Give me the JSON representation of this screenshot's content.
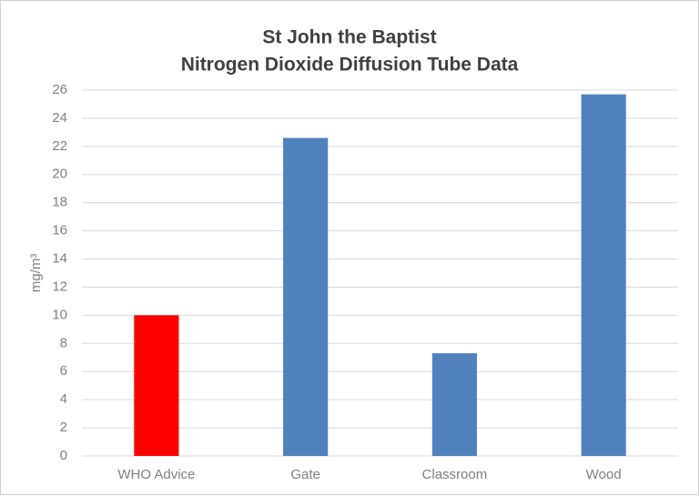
{
  "chart_data": {
    "type": "bar",
    "title": "St John the Baptist",
    "subtitle": "Nitrogen Dioxide Diffusion Tube Data",
    "y_label": "mg/m³",
    "categories": [
      "WHO Advice",
      "Gate",
      "Classroom",
      "Wood"
    ],
    "values": [
      10,
      22.6,
      7.3,
      25.7
    ],
    "colors": [
      "#ff0000",
      "#4f81bd",
      "#4f81bd",
      "#4f81bd"
    ],
    "ylim": [
      0,
      26
    ],
    "yticks": [
      0,
      2,
      4,
      6,
      8,
      10,
      12,
      14,
      16,
      18,
      20,
      22,
      24,
      26
    ],
    "grid": true
  }
}
